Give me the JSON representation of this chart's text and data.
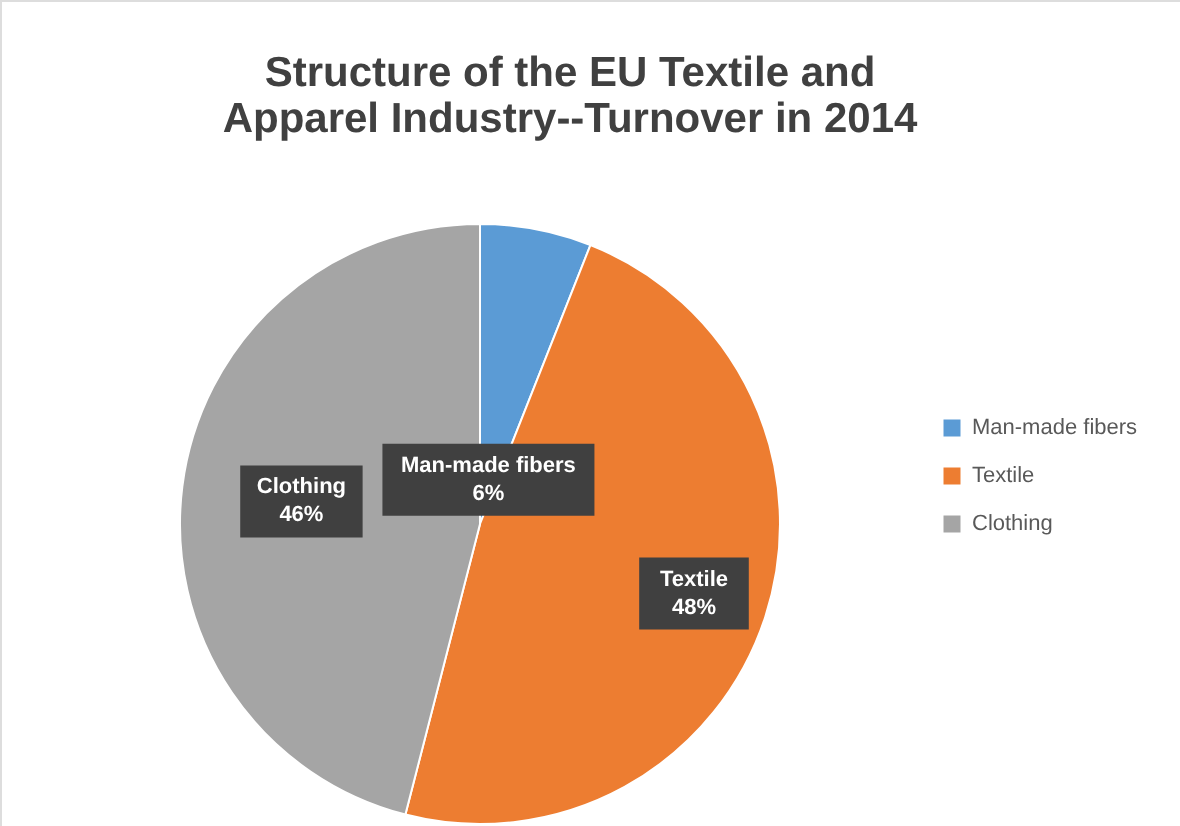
{
  "chart_data": {
    "type": "pie",
    "title": "Structure of the EU Textile and Apparel Industry--Turnover in 2014",
    "categories": [
      "Man-made fibers",
      "Textile",
      "Clothing"
    ],
    "values": [
      6,
      48,
      46
    ],
    "colors": [
      "#5b9bd5",
      "#ed7d31",
      "#a5a5a5"
    ],
    "value_labels": [
      "6%",
      "48%",
      "46%"
    ],
    "legend": "right"
  }
}
